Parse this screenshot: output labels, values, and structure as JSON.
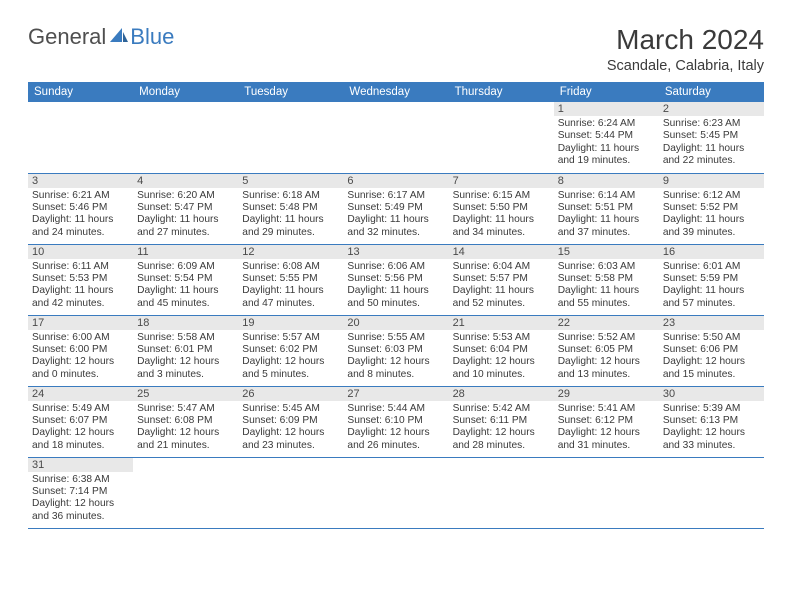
{
  "logo": {
    "text_general": "General",
    "text_blue": "Blue"
  },
  "header": {
    "title": "March 2024",
    "location": "Scandale, Calabria, Italy"
  },
  "colors": {
    "header_bg": "#3a7bbf",
    "header_text": "#ffffff",
    "daynum_bg": "#e8e8e8",
    "border": "#3a7bbf",
    "body_text": "#3a3a3a"
  },
  "weekdays": [
    "Sunday",
    "Monday",
    "Tuesday",
    "Wednesday",
    "Thursday",
    "Friday",
    "Saturday"
  ],
  "weeks": [
    [
      {
        "blank": true
      },
      {
        "blank": true
      },
      {
        "blank": true
      },
      {
        "blank": true
      },
      {
        "blank": true
      },
      {
        "num": "1",
        "sunrise": "6:24 AM",
        "sunset": "5:44 PM",
        "daylight": "11 hours and 19 minutes."
      },
      {
        "num": "2",
        "sunrise": "6:23 AM",
        "sunset": "5:45 PM",
        "daylight": "11 hours and 22 minutes."
      }
    ],
    [
      {
        "num": "3",
        "sunrise": "6:21 AM",
        "sunset": "5:46 PM",
        "daylight": "11 hours and 24 minutes."
      },
      {
        "num": "4",
        "sunrise": "6:20 AM",
        "sunset": "5:47 PM",
        "daylight": "11 hours and 27 minutes."
      },
      {
        "num": "5",
        "sunrise": "6:18 AM",
        "sunset": "5:48 PM",
        "daylight": "11 hours and 29 minutes."
      },
      {
        "num": "6",
        "sunrise": "6:17 AM",
        "sunset": "5:49 PM",
        "daylight": "11 hours and 32 minutes."
      },
      {
        "num": "7",
        "sunrise": "6:15 AM",
        "sunset": "5:50 PM",
        "daylight": "11 hours and 34 minutes."
      },
      {
        "num": "8",
        "sunrise": "6:14 AM",
        "sunset": "5:51 PM",
        "daylight": "11 hours and 37 minutes."
      },
      {
        "num": "9",
        "sunrise": "6:12 AM",
        "sunset": "5:52 PM",
        "daylight": "11 hours and 39 minutes."
      }
    ],
    [
      {
        "num": "10",
        "sunrise": "6:11 AM",
        "sunset": "5:53 PM",
        "daylight": "11 hours and 42 minutes."
      },
      {
        "num": "11",
        "sunrise": "6:09 AM",
        "sunset": "5:54 PM",
        "daylight": "11 hours and 45 minutes."
      },
      {
        "num": "12",
        "sunrise": "6:08 AM",
        "sunset": "5:55 PM",
        "daylight": "11 hours and 47 minutes."
      },
      {
        "num": "13",
        "sunrise": "6:06 AM",
        "sunset": "5:56 PM",
        "daylight": "11 hours and 50 minutes."
      },
      {
        "num": "14",
        "sunrise": "6:04 AM",
        "sunset": "5:57 PM",
        "daylight": "11 hours and 52 minutes."
      },
      {
        "num": "15",
        "sunrise": "6:03 AM",
        "sunset": "5:58 PM",
        "daylight": "11 hours and 55 minutes."
      },
      {
        "num": "16",
        "sunrise": "6:01 AM",
        "sunset": "5:59 PM",
        "daylight": "11 hours and 57 minutes."
      }
    ],
    [
      {
        "num": "17",
        "sunrise": "6:00 AM",
        "sunset": "6:00 PM",
        "daylight": "12 hours and 0 minutes."
      },
      {
        "num": "18",
        "sunrise": "5:58 AM",
        "sunset": "6:01 PM",
        "daylight": "12 hours and 3 minutes."
      },
      {
        "num": "19",
        "sunrise": "5:57 AM",
        "sunset": "6:02 PM",
        "daylight": "12 hours and 5 minutes."
      },
      {
        "num": "20",
        "sunrise": "5:55 AM",
        "sunset": "6:03 PM",
        "daylight": "12 hours and 8 minutes."
      },
      {
        "num": "21",
        "sunrise": "5:53 AM",
        "sunset": "6:04 PM",
        "daylight": "12 hours and 10 minutes."
      },
      {
        "num": "22",
        "sunrise": "5:52 AM",
        "sunset": "6:05 PM",
        "daylight": "12 hours and 13 minutes."
      },
      {
        "num": "23",
        "sunrise": "5:50 AM",
        "sunset": "6:06 PM",
        "daylight": "12 hours and 15 minutes."
      }
    ],
    [
      {
        "num": "24",
        "sunrise": "5:49 AM",
        "sunset": "6:07 PM",
        "daylight": "12 hours and 18 minutes."
      },
      {
        "num": "25",
        "sunrise": "5:47 AM",
        "sunset": "6:08 PM",
        "daylight": "12 hours and 21 minutes."
      },
      {
        "num": "26",
        "sunrise": "5:45 AM",
        "sunset": "6:09 PM",
        "daylight": "12 hours and 23 minutes."
      },
      {
        "num": "27",
        "sunrise": "5:44 AM",
        "sunset": "6:10 PM",
        "daylight": "12 hours and 26 minutes."
      },
      {
        "num": "28",
        "sunrise": "5:42 AM",
        "sunset": "6:11 PM",
        "daylight": "12 hours and 28 minutes."
      },
      {
        "num": "29",
        "sunrise": "5:41 AM",
        "sunset": "6:12 PM",
        "daylight": "12 hours and 31 minutes."
      },
      {
        "num": "30",
        "sunrise": "5:39 AM",
        "sunset": "6:13 PM",
        "daylight": "12 hours and 33 minutes."
      }
    ],
    [
      {
        "num": "31",
        "sunrise": "6:38 AM",
        "sunset": "7:14 PM",
        "daylight": "12 hours and 36 minutes."
      },
      {
        "blank": true
      },
      {
        "blank": true
      },
      {
        "blank": true
      },
      {
        "blank": true
      },
      {
        "blank": true
      },
      {
        "blank": true
      }
    ]
  ],
  "labels": {
    "sunrise": "Sunrise:",
    "sunset": "Sunset:",
    "daylight": "Daylight:"
  }
}
